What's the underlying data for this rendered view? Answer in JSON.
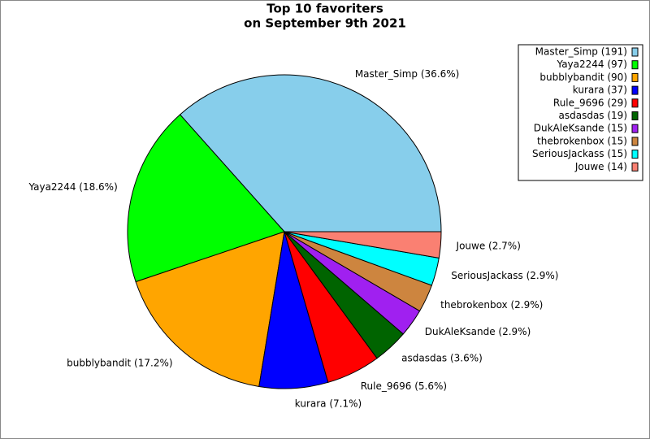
{
  "chart_data": {
    "type": "pie",
    "title": [
      "Top 10 favoriters",
      "on September 9th 2021"
    ],
    "categories": [
      "Master_Simp (191)",
      "Yaya2244 (97)",
      "bubblybandit (90)",
      "kurara (37)",
      "Rule_9696 (29)",
      "asdasdas (19)",
      "DukAleKsande (15)",
      "thebrokenbox (15)",
      "SeriousJackass (15)",
      "Jouwe (14)"
    ],
    "values": [
      191,
      97,
      90,
      37,
      29,
      19,
      15,
      15,
      15,
      14
    ],
    "value_labels": [
      "Master_Simp (36.6%)",
      "Yaya2244 (18.6%)",
      "bubblybandit (17.2%)",
      "kurara (7.1%)",
      "Rule_9696 (5.6%)",
      "asdasdas (3.6%)",
      "DukAleKsande (2.9%)",
      "thebrokenbox (2.9%)",
      "SeriousJackass (2.9%)",
      "Jouwe (2.7%)"
    ],
    "colors": [
      "#87ceeb",
      "#00ff00",
      "#ffa500",
      "#0000ff",
      "#ff0000",
      "#006400",
      "#a020f0",
      "#cd853f",
      "#00ffff",
      "#fa8072"
    ],
    "legend": "upper right"
  }
}
